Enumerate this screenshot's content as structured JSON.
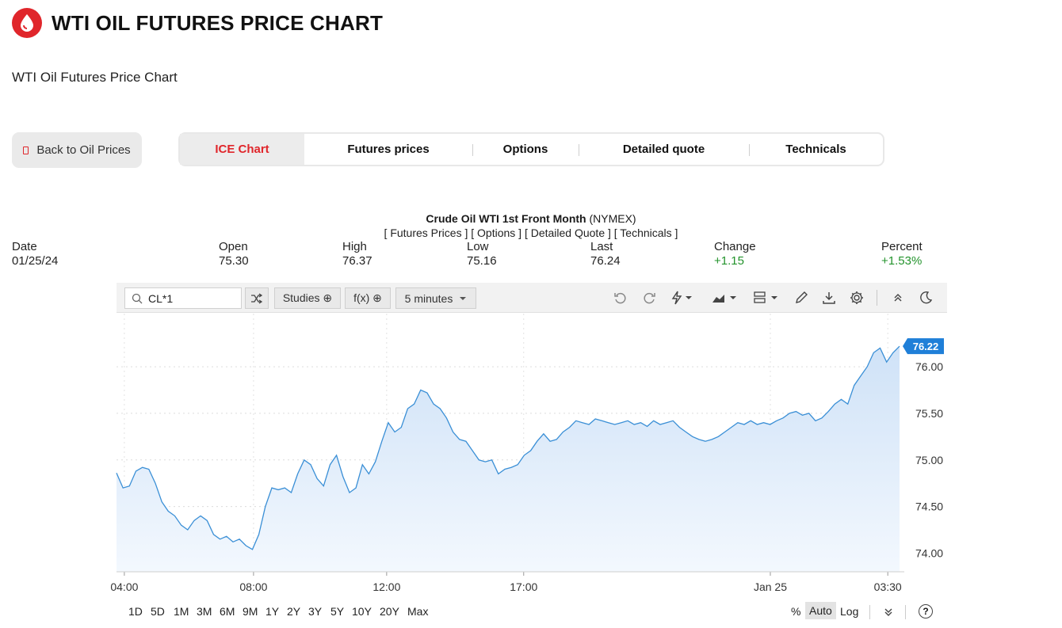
{
  "page": {
    "title": "WTI OIL FUTURES PRICE CHART",
    "subtitle": "WTI Oil Futures Price Chart"
  },
  "nav": {
    "back_label": "Back to Oil Prices",
    "tabs": [
      {
        "label": "ICE Chart",
        "active": true
      },
      {
        "label": "Futures prices",
        "active": false
      },
      {
        "label": "Options",
        "active": false
      },
      {
        "label": "Detailed quote",
        "active": false
      },
      {
        "label": "Technicals",
        "active": false
      }
    ]
  },
  "instrument": {
    "name": "Crude Oil WTI 1st Front Month",
    "exchange": "(NYMEX)",
    "links": "[ Futures Prices ] [ Options ] [ Detailed Quote ] [ Technicals ]"
  },
  "quote": {
    "date_label": "Date",
    "date": "01/25/24",
    "open_label": "Open",
    "open": "75.30",
    "high_label": "High",
    "high": "76.37",
    "low_label": "Low",
    "low": "75.16",
    "last_label": "Last",
    "last": "76.24",
    "change_label": "Change",
    "change": "+1.15",
    "percent_label": "Percent",
    "percent": "+1.53%"
  },
  "toolbar": {
    "symbol": "CL*1",
    "studies_label": "Studies ⊕",
    "fx_label": "f(x) ⊕",
    "interval_label": "5 minutes"
  },
  "range_bar": {
    "ranges": [
      "1D",
      "5D",
      "1M",
      "3M",
      "6M",
      "9M",
      "1Y",
      "2Y",
      "3Y",
      "5Y",
      "10Y",
      "20Y",
      "Max"
    ],
    "scale_percent": "%",
    "scale_auto": "Auto",
    "scale_log": "Log",
    "help": "?"
  },
  "colors": {
    "accent": "#e0262b",
    "positive": "#23932c",
    "line": "#3a8fd6",
    "fill": "#d9e9fa",
    "price_tag": "#1f7fd8"
  },
  "chart_data": {
    "type": "area",
    "x_ticks": [
      "04:00",
      "08:00",
      "12:00",
      "17:00",
      "Jan 25",
      "03:30"
    ],
    "y_ticks": [
      "74.00",
      "74.50",
      "75.00",
      "75.50",
      "76.00"
    ],
    "ylim": [
      73.8,
      76.4
    ],
    "last_price_label": "76.22",
    "grid": true,
    "series": [
      {
        "values": [
          74.86,
          74.7,
          74.72,
          74.88,
          74.92,
          74.9,
          74.75,
          74.55,
          74.45,
          74.4,
          74.3,
          74.25,
          74.35,
          74.4,
          74.35,
          74.2,
          74.15,
          74.18,
          74.12,
          74.15,
          74.08,
          74.04,
          74.2,
          74.5,
          74.7,
          74.68,
          74.7,
          74.65,
          74.85,
          75.0,
          74.95,
          74.8,
          74.72,
          74.95,
          75.05,
          74.82,
          74.65,
          74.7,
          74.95,
          74.85,
          74.98,
          75.2,
          75.4,
          75.3,
          75.35,
          75.55,
          75.6,
          75.75,
          75.72,
          75.6,
          75.55,
          75.45,
          75.3,
          75.22,
          75.2,
          75.1,
          75.0,
          74.98,
          75.0,
          74.85,
          74.9,
          74.92,
          74.95,
          75.05,
          75.1,
          75.2,
          75.28,
          75.2,
          75.22,
          75.3,
          75.35,
          75.42,
          75.4,
          75.38,
          75.44,
          75.42,
          75.4,
          75.38,
          75.4,
          75.42,
          75.38,
          75.4,
          75.36,
          75.42,
          75.38,
          75.4,
          75.42,
          75.35,
          75.3,
          75.25,
          75.22,
          75.2,
          75.22,
          75.25,
          75.3,
          75.35,
          75.4,
          75.38,
          75.42,
          75.38,
          75.4,
          75.38,
          75.42,
          75.45,
          75.5,
          75.52,
          75.48,
          75.5,
          75.42,
          75.45,
          75.52,
          75.6,
          75.65,
          75.6,
          75.8,
          75.9,
          76.0,
          76.15,
          76.2,
          76.05,
          76.15,
          76.22
        ]
      }
    ]
  }
}
